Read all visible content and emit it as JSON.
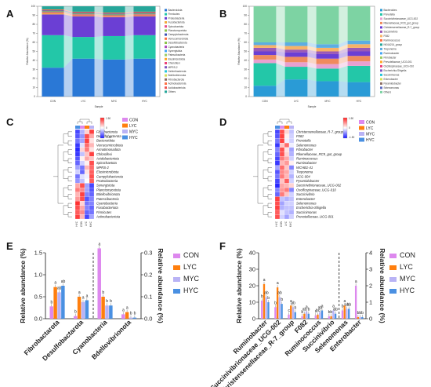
{
  "panels": {
    "a": "A",
    "b": "B",
    "c": "C",
    "d": "D",
    "e": "E",
    "f": "F"
  },
  "groups": [
    "CON",
    "LYC",
    "MYC",
    "HYC"
  ],
  "group_colors": {
    "CON": "#dd88ee",
    "LYC": "#ff7f0e",
    "MYC": "#b9b3f5",
    "HYC": "#4a90e2"
  },
  "stack_xlabel": "Sample",
  "stack_ylabel": "Relative Abundance (%)",
  "chart_data": [
    {
      "type": "bar",
      "panel": "A",
      "stacked": true,
      "categories": [
        "CON",
        "LYC",
        "MYC",
        "HYC"
      ],
      "xlabel": "Sample",
      "ylabel": "Relative Abundance (%)",
      "ylim": [
        0,
        100
      ],
      "yticks": [
        0,
        10,
        20,
        30,
        40,
        50,
        60,
        70,
        80,
        90,
        100
      ],
      "series": [
        {
          "name": "Bacteroidota",
          "color": "#2a78d6",
          "values": [
            32,
            42,
            41,
            42
          ]
        },
        {
          "name": "Firmicutes",
          "color": "#23c7a8",
          "values": [
            36,
            24,
            26,
            26
          ]
        },
        {
          "name": "Proteobacteria",
          "color": "#6b3fd4",
          "values": [
            23,
            23,
            21,
            21
          ]
        },
        {
          "name": "Fusobacteriota",
          "color": "#f2a93b",
          "values": [
            1.5,
            1,
            1,
            1
          ]
        },
        {
          "name": "Spirochaetota",
          "color": "#e84d8a",
          "values": [
            1,
            1,
            1,
            1
          ]
        },
        {
          "name": "Desulfobacterota",
          "color": "#8bc34a",
          "values": [
            1,
            1,
            1,
            1
          ]
        },
        {
          "name": "Campylobacterota",
          "color": "#3f51b5",
          "values": [
            1,
            1,
            1,
            1
          ]
        },
        {
          "name": "Actinobacteriota",
          "color": "#ff7043",
          "values": [
            1,
            1,
            1,
            1
          ]
        },
        {
          "name": "Others",
          "color": "#26a69a",
          "values": [
            3.5,
            6,
            7,
            6
          ]
        }
      ],
      "legend": [
        "Bacteroidota",
        "Firmicutes",
        "Proteobacteria",
        "Fusobacteriota",
        "Spirochaetota",
        "Planctomycetota",
        "Campylobacterota",
        "Verrucomicrobiota",
        "Desulfobacterota",
        "Cyanobacteria",
        "Synergistota",
        "Patescibacteria",
        "Elusimicrobiota",
        "Chloroflexi",
        "MPRS-2",
        "Deferribacterota",
        "Bdellovibrionota",
        "Fibrobacterota",
        "Actinobacteriota",
        "Acidobacteriota",
        "Others"
      ]
    },
    {
      "type": "bar",
      "panel": "B",
      "stacked": true,
      "categories": [
        "CON",
        "LYC",
        "MYC",
        "HYC"
      ],
      "xlabel": "Sample",
      "ylabel": "Relative Abundance (%)",
      "ylim": [
        0,
        100
      ],
      "yticks": [
        0,
        10,
        20,
        30,
        40,
        50,
        60,
        70,
        80,
        90,
        100
      ],
      "series": [
        {
          "name": "Bacteroides",
          "color": "#2a9bd6",
          "values": [
            12,
            19,
            17,
            16
          ]
        },
        {
          "name": "Prevotella",
          "color": "#23c7a8",
          "values": [
            25,
            14,
            14,
            18
          ]
        },
        {
          "name": "Succinivibrionaceae_UCG-002",
          "color": "#e8a0d0",
          "values": [
            4,
            5,
            5,
            5
          ]
        },
        {
          "name": "Rikenellaceae_RC9_gut_group",
          "color": "#f08a5d",
          "values": [
            5,
            6,
            6,
            6
          ]
        },
        {
          "name": "Christensenellaceae_R-7_group",
          "color": "#6b3fd4",
          "values": [
            4,
            5,
            5,
            5
          ]
        },
        {
          "name": "Succinivibrio",
          "color": "#9b59b6",
          "values": [
            4,
            3,
            3,
            4
          ]
        },
        {
          "name": "F082",
          "color": "#f7b267",
          "values": [
            3,
            4,
            4,
            4
          ]
        },
        {
          "name": "Treponema",
          "color": "#5dade2",
          "values": [
            3,
            4,
            4,
            4
          ]
        },
        {
          "name": "Others",
          "color": "#7dd3a3",
          "values": [
            40,
            40,
            42,
            38
          ]
        }
      ],
      "legend": [
        "Bacteroides",
        "Prevotella",
        "Succinivibrionaceae_UCG-002",
        "Rikenellaceae_RC9_gut_group",
        "Christensenellaceae_R-7_group",
        "Succinivibrio",
        "F082",
        "Ruminococcus",
        "NK4A214_group",
        "Treponema",
        "Ruminobacter",
        "Fibrobacter",
        "Prevotellaceae_UCG-001",
        "Oscillospiraceae_UCG-010",
        "Escherichia-Shigella",
        "Succinimonas",
        "Enterobacter",
        "Pyramidobacter",
        "Selenomonas",
        "Others"
      ]
    },
    {
      "type": "heatmap",
      "panel": "C",
      "columns": [
        "HYC",
        "CON",
        "LYC",
        "MYC"
      ],
      "legend_groups": [
        "CON",
        "LYC",
        "MYC",
        "HYC"
      ],
      "scale": {
        "min": -1.5,
        "max": 1.5,
        "tick_labels": [
          "1.50",
          "0",
          "-1.50"
        ]
      },
      "rows": [
        {
          "label": "Fibrobacterota",
          "values": [
            -1.2,
            -0.5,
            0.3,
            1.3
          ]
        },
        {
          "label": "Desulfobacterota",
          "values": [
            -1.1,
            -0.7,
            1.2,
            0.6
          ]
        },
        {
          "label": "Bacteroidota",
          "values": [
            -0.9,
            -0.6,
            1.3,
            0.2
          ]
        },
        {
          "label": "Verrucomicrobiota",
          "values": [
            -1.3,
            -0.2,
            1.0,
            0.5
          ]
        },
        {
          "label": "Armatimonadota",
          "values": [
            -1.4,
            0.3,
            0.9,
            0.2
          ]
        },
        {
          "label": "Chloroflexi",
          "values": [
            -1.3,
            -0.4,
            0.4,
            1.3
          ]
        },
        {
          "label": "Acidobacteriota",
          "values": [
            -1.1,
            0.1,
            0.6,
            0.4
          ]
        },
        {
          "label": "Spirochaetota",
          "values": [
            -1.0,
            -0.3,
            0.1,
            1.2
          ]
        },
        {
          "label": "MPRS-2",
          "values": [
            -0.6,
            -0.9,
            0.5,
            1.0
          ]
        },
        {
          "label": "Elusimicrobiota",
          "values": [
            -0.3,
            -1.0,
            0.2,
            1.1
          ]
        },
        {
          "label": "Campylobacterota",
          "values": [
            -0.9,
            -0.2,
            -0.1,
            1.2
          ]
        },
        {
          "label": "Proteobacteria",
          "values": [
            -0.7,
            -0.4,
            0.0,
            1.1
          ]
        },
        {
          "label": "Synergistota",
          "values": [
            0.6,
            1.2,
            -0.6,
            -1.2
          ]
        },
        {
          "label": "Planctomycetota",
          "values": [
            0.9,
            0.8,
            -0.6,
            -1.1
          ]
        },
        {
          "label": "Bdellovibrionota",
          "values": [
            0.5,
            1.3,
            -0.8,
            -1.0
          ]
        },
        {
          "label": "Patescibacteria",
          "values": [
            0.7,
            1.2,
            -1.1,
            -0.8
          ]
        },
        {
          "label": "Cyanobacteria",
          "values": [
            1.4,
            0.3,
            -0.9,
            -0.8
          ]
        },
        {
          "label": "Fusobacteriota",
          "values": [
            1.2,
            0.6,
            -0.8,
            -1.0
          ]
        },
        {
          "label": "Firmicutes",
          "values": [
            1.1,
            0.8,
            -1.0,
            -0.9
          ]
        },
        {
          "label": "Actinobacteriota",
          "values": [
            1.3,
            0.5,
            -1.2,
            -0.6
          ]
        }
      ]
    },
    {
      "type": "heatmap",
      "panel": "D",
      "columns": [
        "HYC",
        "CON",
        "LYC",
        "MYC"
      ],
      "legend_groups": [
        "CON",
        "LYC",
        "MYC",
        "HYC"
      ],
      "scale": {
        "min": -1.5,
        "max": 1.5,
        "tick_labels": [
          "1.50",
          "0",
          "-1.50"
        ]
      },
      "rows": [
        {
          "label": "Christensenellaceae_R-7_group",
          "values": [
            -1.2,
            1.2,
            0.3,
            -0.4
          ]
        },
        {
          "label": "F082",
          "values": [
            -1.1,
            1.3,
            0.1,
            -0.3
          ]
        },
        {
          "label": "Prevotella",
          "values": [
            -0.9,
            1.3,
            -0.1,
            -0.3
          ]
        },
        {
          "label": "Selenomonas",
          "values": [
            -1.3,
            0.4,
            1.0,
            -0.1
          ]
        },
        {
          "label": "Fibrobacter",
          "values": [
            -0.8,
            1.2,
            0.2,
            -0.6
          ]
        },
        {
          "label": "Rikenellaceae_RC9_gut_group",
          "values": [
            -1.0,
            1.2,
            0.3,
            -0.5
          ]
        },
        {
          "label": "Ruminococcus",
          "values": [
            -1.2,
            0.9,
            0.6,
            -0.3
          ]
        },
        {
          "label": "Ruminobacter",
          "values": [
            -1.3,
            0.5,
            0.7,
            0.1
          ]
        },
        {
          "label": "WCHB1-41",
          "values": [
            -0.6,
            1.0,
            0.4,
            -0.8
          ]
        },
        {
          "label": "Treponema",
          "values": [
            -1.1,
            0.8,
            0.6,
            -0.3
          ]
        },
        {
          "label": "UCG-004",
          "values": [
            -0.9,
            0.9,
            0.5,
            -0.5
          ]
        },
        {
          "label": "Pyramidobacter",
          "values": [
            -1.2,
            0.4,
            1.1,
            -0.3
          ]
        },
        {
          "label": "Succinivibrionaceae_UCG-002",
          "values": [
            -1.4,
            0.6,
            0.5,
            0.3
          ]
        },
        {
          "label": "Oscillospiraceae_UCG-010",
          "values": [
            -0.8,
            0.7,
            0.9,
            -0.8
          ]
        },
        {
          "label": "Succinivibrio",
          "values": [
            -1.0,
            0.9,
            0.4,
            -0.3
          ]
        },
        {
          "label": "Enterobacter",
          "values": [
            1.3,
            -0.4,
            -0.5,
            -0.4
          ]
        },
        {
          "label": "Selenomonas",
          "values": [
            1.2,
            -0.6,
            -0.3,
            -0.3
          ]
        },
        {
          "label": "Escherichia-Shigella",
          "values": [
            1.3,
            -0.5,
            -0.4,
            -0.4
          ]
        },
        {
          "label": "Succinimonas",
          "values": [
            1.1,
            -0.2,
            -0.4,
            -0.5
          ]
        },
        {
          "label": "Prevotellaceae_UCG-001",
          "values": [
            1.2,
            -0.3,
            -0.6,
            -0.3
          ]
        }
      ]
    },
    {
      "type": "bar",
      "panel": "E",
      "categories": [
        "Fibrobactarota",
        "Desulfobactarota",
        "Cyanobacteria",
        "Bdellovibrionota"
      ],
      "ylabel": "Relative abundance (%)",
      "ylabel_right": "Relative abundance (%)",
      "ylim": [
        0,
        1.5
      ],
      "yticks": [
        0.0,
        0.5,
        1.0,
        1.5
      ],
      "ylim_right": [
        0,
        0.3
      ],
      "yticks_right": [
        0.0,
        0.1,
        0.2,
        0.3
      ],
      "split_after": 2,
      "right_axis_categories": [
        "Cyanobacteria",
        "Bdellovibrionota"
      ],
      "series": [
        {
          "name": "CON",
          "color": "#dd88ee",
          "values": [
            0.28,
            0.06,
            0.32,
            0.02
          ],
          "letters": [
            "b",
            "b",
            "a",
            "a"
          ]
        },
        {
          "name": "LYC",
          "color": "#ff7f0e",
          "values": [
            0.72,
            0.5,
            0.1,
            0.03
          ],
          "letters": [
            "a",
            "a",
            "b",
            "a"
          ]
        },
        {
          "name": "MYC",
          "color": "#b9b3f5",
          "values": [
            0.6,
            0.38,
            0.06,
            0.005
          ],
          "letters": [
            "ab",
            "a",
            "b",
            "b"
          ]
        },
        {
          "name": "HYC",
          "color": "#4a90e2",
          "values": [
            0.75,
            0.42,
            0.06,
            0.005
          ],
          "letters": [
            "ab",
            "a",
            "b",
            "b"
          ]
        }
      ]
    },
    {
      "type": "bar",
      "panel": "F",
      "categories": [
        "Ruminobacter",
        "Succinivibrionaceae_UCG-002",
        "Christensenellaceae_R-7_group",
        "F082",
        "Ruminococcus",
        "Succinivibrio",
        "Selenomonas",
        "Enterobacter"
      ],
      "ylabel": "Relative abundance (%)",
      "ylabel_right": "Relative abundance (%)",
      "ylim": [
        0,
        40
      ],
      "yticks": [
        0,
        10,
        20,
        30,
        40
      ],
      "ylim_right": [
        0,
        4
      ],
      "yticks_right": [
        0,
        1,
        2,
        3,
        4
      ],
      "split_after": 6,
      "right_axis_categories": [
        "Selenomonas",
        "Enterobacter"
      ],
      "series": [
        {
          "name": "CON",
          "color": "#dd88ee",
          "values": [
            11,
            7,
            2.5,
            1.5,
            2.0,
            1.5,
            0.5,
            2.0
          ],
          "letters": [
            "b",
            "b",
            "c",
            "b",
            "c",
            "b",
            "b",
            "a"
          ]
        },
        {
          "name": "LYC",
          "color": "#ff7f0e",
          "values": [
            21,
            19,
            8,
            3,
            2.5,
            1.5,
            0.8,
            0.1
          ],
          "letters": [
            "a",
            "a",
            "a",
            "ab",
            "bc",
            "b",
            "a",
            "b"
          ]
        },
        {
          "name": "MYC",
          "color": "#b9b3f5",
          "values": [
            13,
            13,
            7,
            4.5,
            4,
            5,
            0.6,
            0.1
          ],
          "letters": [
            "ab",
            "ab",
            "ab",
            "a",
            "ab",
            "a",
            "ab",
            "b"
          ]
        },
        {
          "name": "HYC",
          "color": "#4a90e2",
          "values": [
            10,
            9,
            4,
            3,
            5,
            3,
            0.6,
            0.1
          ],
          "letters": [
            "b",
            "b",
            "b",
            "b",
            "a",
            "ab",
            "ab",
            "b"
          ]
        }
      ]
    }
  ]
}
